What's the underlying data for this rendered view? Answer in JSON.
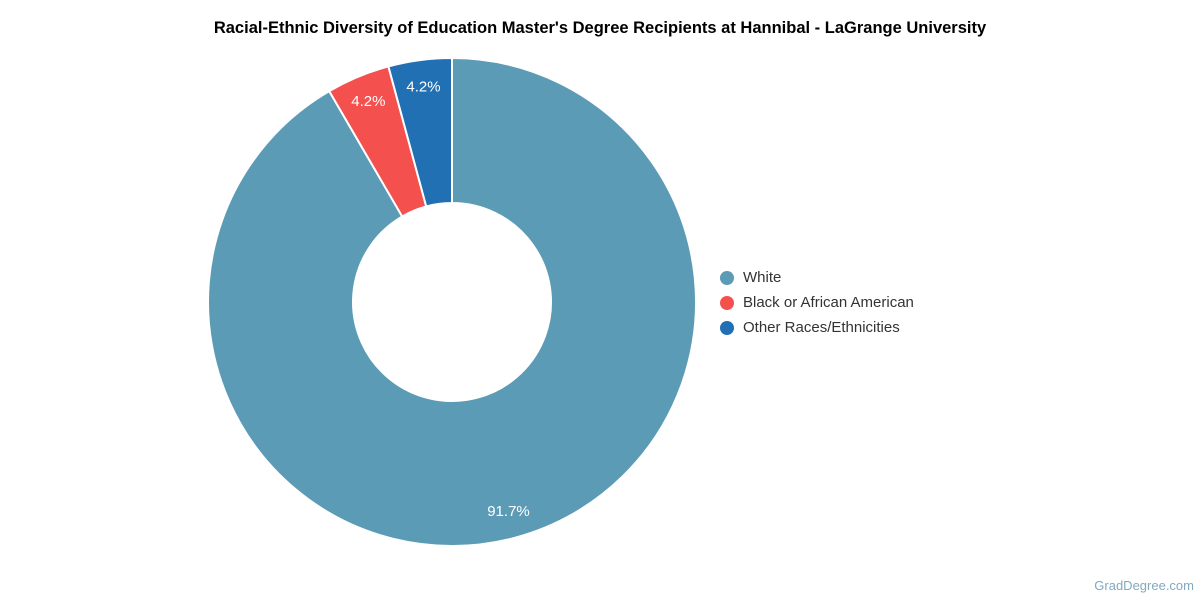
{
  "chart_data": {
    "type": "pie",
    "subtype": "donut",
    "title": "Racial-Ethnic Diversity of Education Master's Degree Recipients at Hannibal - LaGrange University",
    "categories": [
      "White",
      "Black or African American",
      "Other Races/Ethnicities"
    ],
    "values": [
      91.7,
      4.2,
      4.2
    ],
    "labels": [
      "91.7%",
      "4.2%",
      "4.2%"
    ],
    "colors": [
      "#5b9bb5",
      "#f4514e",
      "#2170b4"
    ],
    "label_color": "#ffffff",
    "slice_border_color": "#ffffff",
    "legend_position": "right",
    "start_angle_deg": 0,
    "direction": "clockwise"
  },
  "watermark": {
    "text": "GradDegree.com",
    "color": "#81a9c0"
  }
}
